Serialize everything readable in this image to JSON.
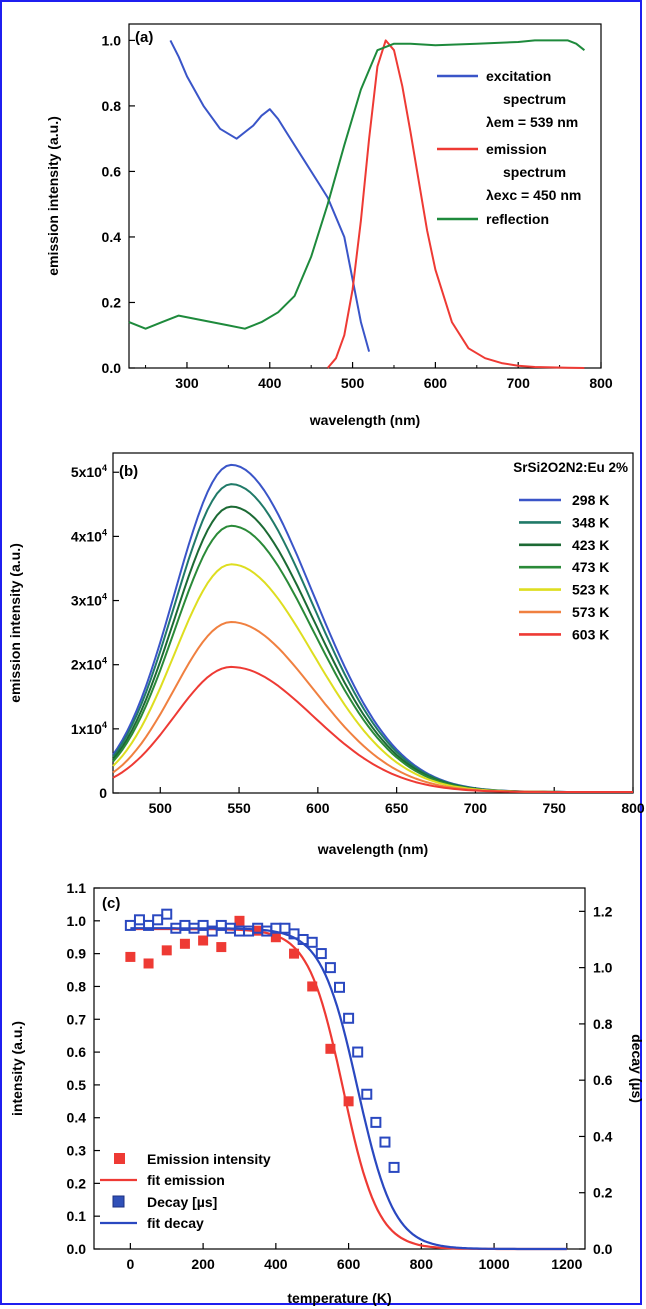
{
  "colors": {
    "border": "#1f1ff0",
    "excitation": "#3a55c8",
    "emission": "#ee3a34",
    "reflection": "#1e8a3c",
    "t298": "#3a55c8",
    "t348": "#207a68",
    "t423": "#1c6a34",
    "t473": "#2a8a38",
    "t523": "#dede20",
    "t573": "#f08040",
    "t603": "#ee3a34",
    "decay": "#2a48c0"
  },
  "chart_data": [
    {
      "type": "line",
      "panel_label": "(a)",
      "xlabel": "wavelength (nm)",
      "ylabel": "emission intensity (a.u.)",
      "xlim": [
        230,
        800
      ],
      "ylim": [
        0,
        1.05
      ],
      "x_ticks": [
        "300",
        "400",
        "500",
        "600",
        "700",
        "800"
      ],
      "y_ticks": [
        "0.0",
        "0.2",
        "0.4",
        "0.6",
        "0.8",
        "1.0"
      ],
      "legend": {
        "excitation_l1": "excitation",
        "excitation_l2": "spectrum",
        "excitation_l3": "λem = 539 nm",
        "emission_l1": "emission",
        "emission_l2": "spectrum",
        "emission_l3": "λexc = 450 nm",
        "reflection": "reflection"
      },
      "series": [
        {
          "name": "excitation spectrum",
          "key": "excitation",
          "x": [
            280,
            290,
            300,
            320,
            340,
            360,
            370,
            380,
            390,
            400,
            410,
            420,
            440,
            460,
            470,
            480,
            490,
            500,
            510,
            520
          ],
          "y": [
            1.0,
            0.95,
            0.89,
            0.8,
            0.73,
            0.7,
            0.72,
            0.74,
            0.77,
            0.79,
            0.76,
            0.72,
            0.64,
            0.56,
            0.52,
            0.46,
            0.4,
            0.27,
            0.14,
            0.05
          ]
        },
        {
          "name": "emission spectrum",
          "key": "emission",
          "x": [
            470,
            480,
            490,
            500,
            510,
            520,
            530,
            540,
            550,
            560,
            570,
            580,
            590,
            600,
            620,
            640,
            660,
            680,
            700,
            720,
            760,
            780
          ],
          "y": [
            0.0,
            0.03,
            0.1,
            0.24,
            0.45,
            0.7,
            0.92,
            1.0,
            0.97,
            0.86,
            0.72,
            0.57,
            0.42,
            0.3,
            0.14,
            0.06,
            0.03,
            0.015,
            0.007,
            0.003,
            0.001,
            0.0
          ]
        },
        {
          "name": "reflection",
          "key": "reflection",
          "x": [
            230,
            250,
            270,
            290,
            310,
            330,
            350,
            370,
            390,
            410,
            430,
            450,
            470,
            490,
            510,
            530,
            550,
            570,
            600,
            650,
            700,
            720,
            760,
            770,
            780
          ],
          "y": [
            0.14,
            0.12,
            0.14,
            0.16,
            0.15,
            0.14,
            0.13,
            0.12,
            0.14,
            0.17,
            0.22,
            0.34,
            0.5,
            0.68,
            0.85,
            0.97,
            0.99,
            0.99,
            0.985,
            0.99,
            0.995,
            1.0,
            1.0,
            0.99,
            0.97
          ]
        }
      ]
    },
    {
      "type": "line",
      "panel_label": "(b)",
      "xlabel": "wavelength (nm)",
      "ylabel": "emission intensity (a.u.)",
      "xlim": [
        470,
        800
      ],
      "ylim": [
        0,
        53000
      ],
      "x_ticks": [
        "500",
        "550",
        "600",
        "650",
        "700",
        "750",
        "800"
      ],
      "y_ticks": [
        "0",
        "1x10",
        "2x10",
        "3x10",
        "4x10",
        "5x10"
      ],
      "y_tick_exponent": "4",
      "legend_title": "SrSi2O2N2:Eu 2%",
      "peak_wavelength": 545,
      "series": [
        {
          "name": "298 K",
          "key": "t298",
          "peak": 51000
        },
        {
          "name": "348 K",
          "key": "t348",
          "peak": 48000
        },
        {
          "name": "423 K",
          "key": "t423",
          "peak": 44500
        },
        {
          "name": "473 K",
          "key": "t473",
          "peak": 41500
        },
        {
          "name": "523 K",
          "key": "t523",
          "peak": 35500
        },
        {
          "name": "573 K",
          "key": "t573",
          "peak": 26500
        },
        {
          "name": "603 K",
          "key": "t603",
          "peak": 19500
        }
      ]
    },
    {
      "type": "scatter",
      "panel_label": "(c)",
      "xlabel": "temperature (K)",
      "ylabel": "intensity (a.u.)",
      "ylabel_right": "decay (µs)",
      "xlim": [
        -100,
        1250
      ],
      "ylim": [
        0,
        1.1
      ],
      "ylim_right": [
        0,
        1.283
      ],
      "x_ticks": [
        "0",
        "200",
        "400",
        "600",
        "800",
        "1000",
        "1200"
      ],
      "y_ticks": [
        "0.0",
        "0.1",
        "0.2",
        "0.3",
        "0.4",
        "0.5",
        "0.6",
        "0.7",
        "0.8",
        "0.9",
        "1.0",
        "1.1"
      ],
      "y_ticks_right": [
        "0.0",
        "0.2",
        "0.4",
        "0.6",
        "0.8",
        "1.0",
        "1.2"
      ],
      "legend": {
        "emission_points": "Emission intensity",
        "emission_fit": "fit emission",
        "decay_points": "Decay [µs]",
        "decay_fit": "fit decay"
      },
      "emission_points": {
        "x": [
          0,
          50,
          100,
          150,
          200,
          250,
          300,
          350,
          400,
          450,
          500,
          550,
          600
        ],
        "y": [
          0.89,
          0.87,
          0.91,
          0.93,
          0.94,
          0.92,
          1.0,
          0.97,
          0.95,
          0.9,
          0.8,
          0.61,
          0.45
        ]
      },
      "decay_points": {
        "x": [
          0,
          25,
          50,
          75,
          100,
          125,
          150,
          175,
          200,
          225,
          250,
          275,
          300,
          325,
          350,
          375,
          400,
          425,
          450,
          475,
          500,
          525,
          550,
          575,
          600,
          625,
          650,
          675,
          700,
          725
        ],
        "y": [
          1.15,
          1.17,
          1.15,
          1.17,
          1.19,
          1.14,
          1.15,
          1.14,
          1.15,
          1.13,
          1.15,
          1.14,
          1.13,
          1.13,
          1.14,
          1.13,
          1.14,
          1.14,
          1.12,
          1.1,
          1.09,
          1.05,
          1.0,
          0.93,
          0.82,
          0.7,
          0.55,
          0.45,
          0.38,
          0.29
        ]
      },
      "emission_fit": {
        "level": 0.975,
        "t50": 585,
        "width": 48
      },
      "decay_fit": {
        "level": 1.14,
        "t50": 625,
        "width": 50
      }
    }
  ]
}
